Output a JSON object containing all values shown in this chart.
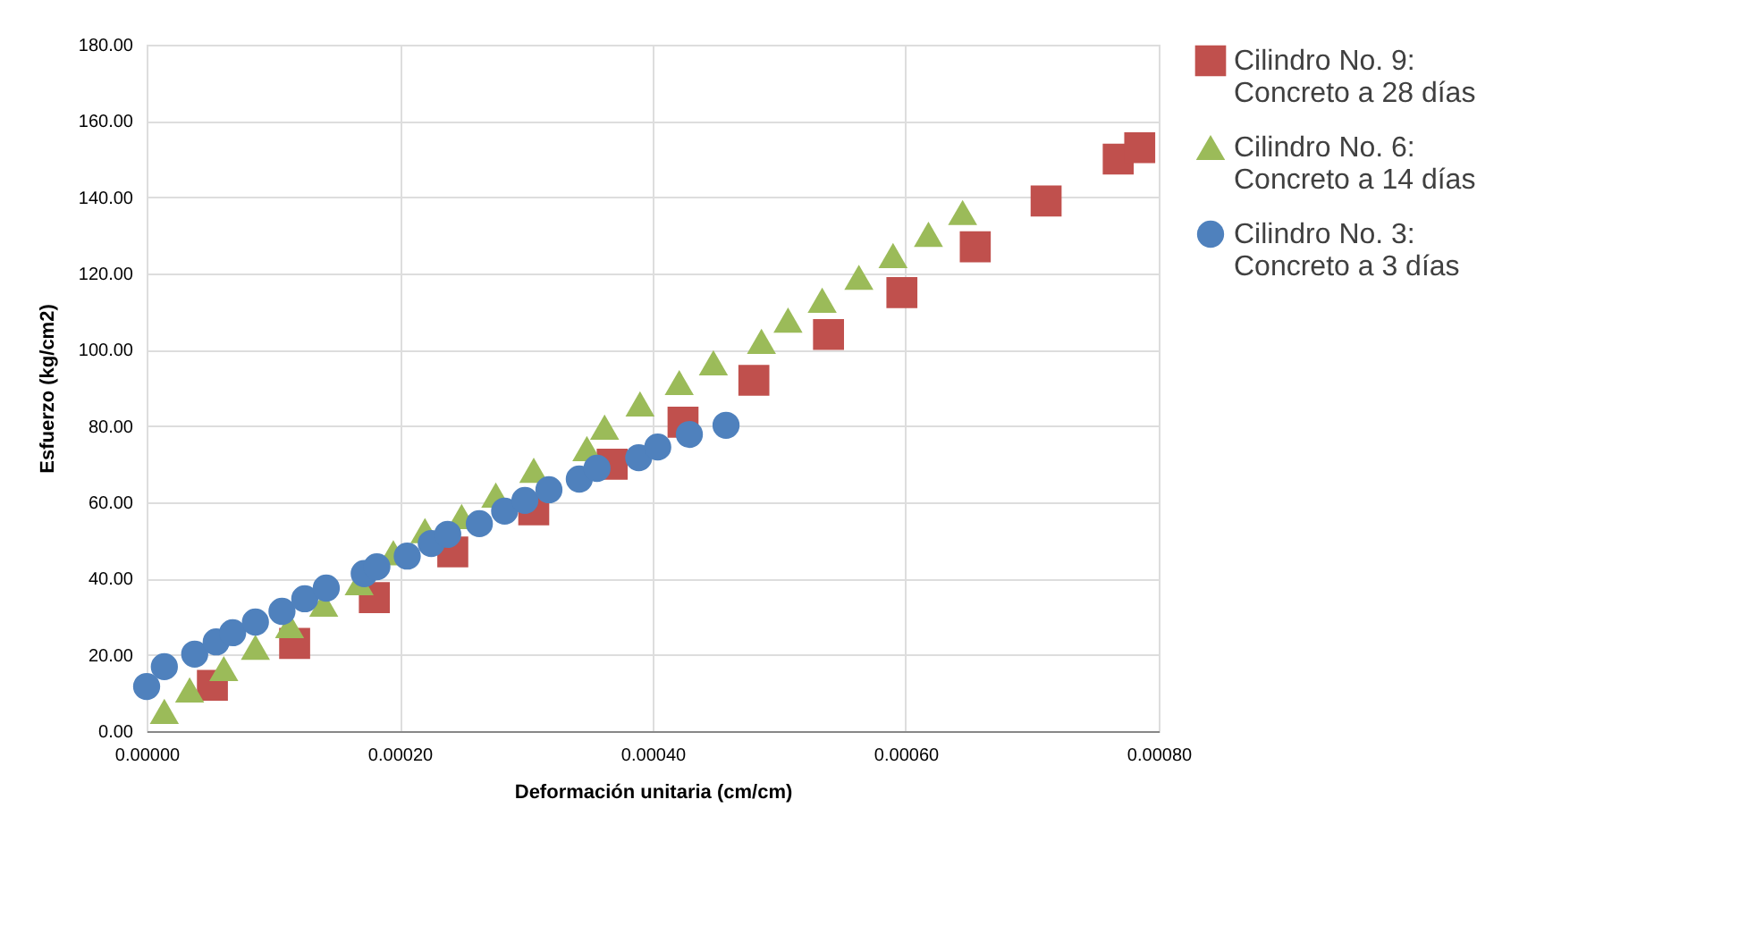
{
  "chart_data": {
    "type": "scatter",
    "xlabel": "Deformación unitaria (cm/cm)",
    "ylabel": "Esfuerzo (kg/cm2)",
    "xlim": [
      0,
      0.0008
    ],
    "ylim": [
      0,
      180
    ],
    "xticks": [
      {
        "value": 0,
        "label": "0.00000"
      },
      {
        "value": 0.0002,
        "label": "0.00020"
      },
      {
        "value": 0.0004,
        "label": "0.00040"
      },
      {
        "value": 0.0006,
        "label": "0.00060"
      },
      {
        "value": 0.0008,
        "label": "0.00080"
      }
    ],
    "yticks": [
      {
        "value": 0,
        "label": "0.00"
      },
      {
        "value": 20,
        "label": "20.00"
      },
      {
        "value": 40,
        "label": "40.00"
      },
      {
        "value": 60,
        "label": "60.00"
      },
      {
        "value": 80,
        "label": "80.00"
      },
      {
        "value": 100,
        "label": "100.00"
      },
      {
        "value": 120,
        "label": "120.00"
      },
      {
        "value": 140,
        "label": "140.00"
      },
      {
        "value": 160,
        "label": "160.00"
      },
      {
        "value": 180,
        "label": "180.00"
      }
    ],
    "grid": true,
    "legend": "right",
    "series": [
      {
        "name": "Cilindro No. 9: Concreto a 28 días",
        "color": "#c0504d",
        "marker": "square",
        "x": [
          5.2e-05,
          0.000117,
          0.00018,
          0.000242,
          0.000306,
          0.000368,
          0.000424,
          0.00048,
          0.000539,
          0.000597,
          0.000655,
          0.000711,
          0.000768,
          0.000785
        ],
        "values": [
          12,
          23,
          35,
          47,
          58,
          70,
          81,
          92,
          104,
          115,
          127,
          139,
          150,
          153
        ]
      },
      {
        "name": "Cilindro No. 6: Concreto a 14 días",
        "color": "#9bbb59",
        "marker": "triangle",
        "x": [
          1.4e-05,
          3.4e-05,
          6.1e-05,
          8.6e-05,
          0.000113,
          0.00014,
          0.000168,
          0.000195,
          0.00022,
          0.000249,
          0.000276,
          0.000306,
          0.000348,
          0.000362,
          0.00039,
          0.000421,
          0.000448,
          0.000486,
          0.000507,
          0.000534,
          0.000563,
          0.00059,
          0.000618,
          0.000645
        ],
        "values": [
          5.2,
          10.8,
          16.4,
          22,
          27.7,
          33.3,
          38.9,
          46.8,
          52.6,
          56.3,
          61.9,
          68.4,
          74.1,
          79.7,
          85.8,
          91.4,
          96.6,
          102.2,
          107.8,
          113,
          119,
          124.7,
          130.3,
          136
        ]
      },
      {
        "name": "Cilindro No. 3: Concreto a 3 días",
        "color": "#4f81bd",
        "marker": "circle",
        "x": [
          0,
          1.4e-05,
          3.8e-05,
          5.5e-05,
          6.8e-05,
          8.6e-05,
          0.000107,
          0.000125,
          0.000142,
          0.000172,
          0.000182,
          0.000206,
          0.000225,
          0.000238,
          0.000263,
          0.000283,
          0.000299,
          0.000318,
          0.000342,
          0.000356,
          0.000389,
          0.000404,
          0.000429,
          0.000458
        ],
        "values": [
          11.7,
          16.9,
          20.2,
          23.4,
          25.8,
          28.6,
          31.4,
          34.7,
          37.5,
          41.3,
          43.1,
          45.9,
          49.2,
          51.6,
          54.4,
          57.7,
          60.5,
          63.3,
          66.1,
          68.9,
          71.7,
          74.5,
          77.8,
          80.2
        ]
      }
    ]
  }
}
